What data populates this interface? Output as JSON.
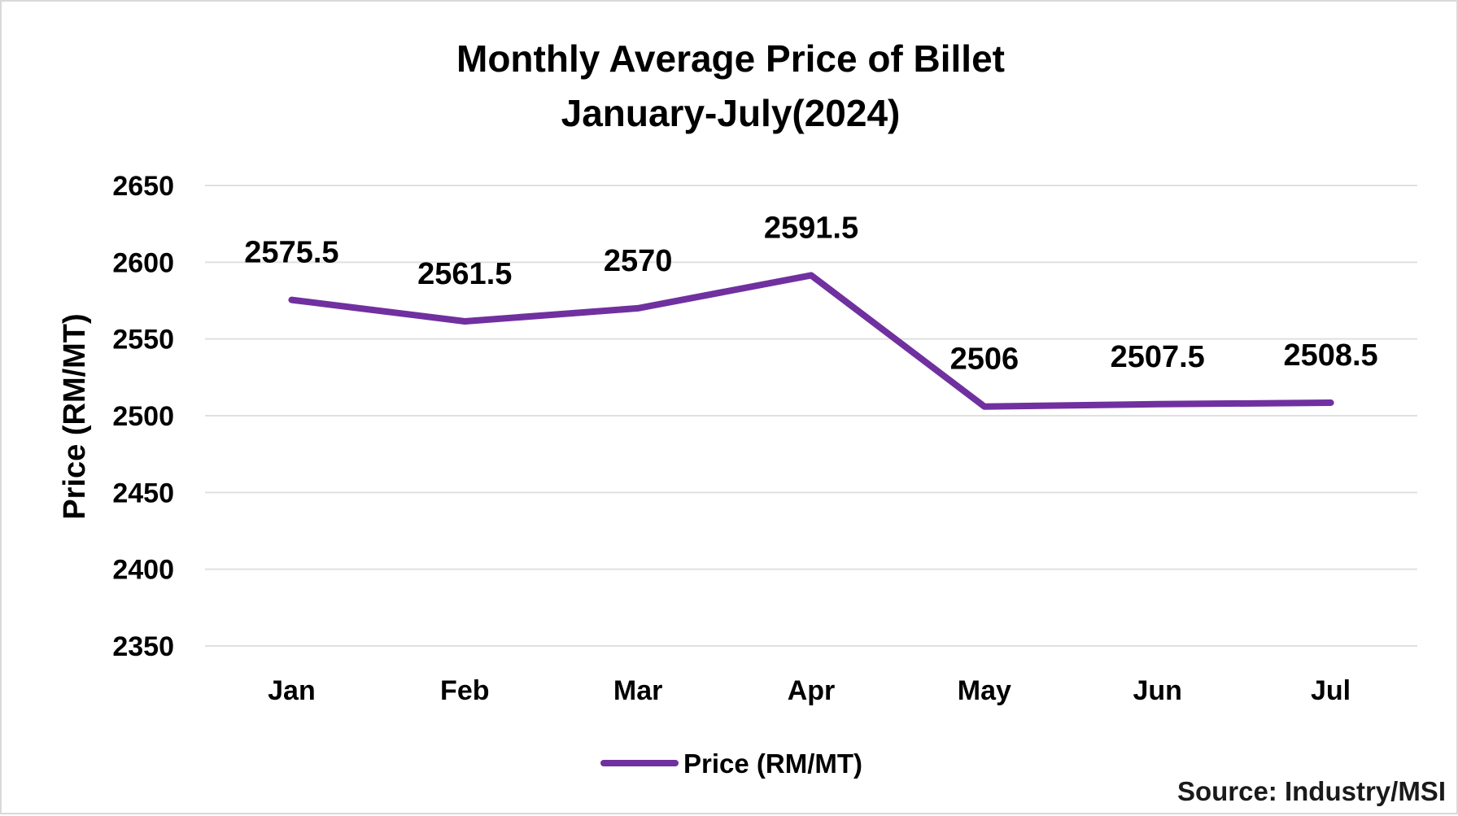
{
  "chart_data": {
    "type": "line",
    "title": "Monthly Average Price of Billet",
    "subtitle": "January-July(2024)",
    "xlabel": "",
    "ylabel": "Price (RM/MT)",
    "categories": [
      "Jan",
      "Feb",
      "Mar",
      "Apr",
      "May",
      "Jun",
      "Jul"
    ],
    "series": [
      {
        "name": "Price (RM/MT)",
        "values": [
          2575.5,
          2561.5,
          2570,
          2591.5,
          2506,
          2507.5,
          2508.5
        ],
        "labels": [
          "2575.5",
          "2561.5",
          "2570",
          "2591.5",
          "2506",
          "2507.5",
          "2508.5"
        ],
        "color": "#7030a0"
      }
    ],
    "ylim": [
      2350,
      2650
    ],
    "yticks": [
      "2650",
      "2600",
      "2550",
      "2500",
      "2450",
      "2400",
      "2350"
    ],
    "grid": true,
    "gridline_color": "#e0e0e0",
    "legend_position": "bottom"
  },
  "source": "Source: Industry/MSI"
}
